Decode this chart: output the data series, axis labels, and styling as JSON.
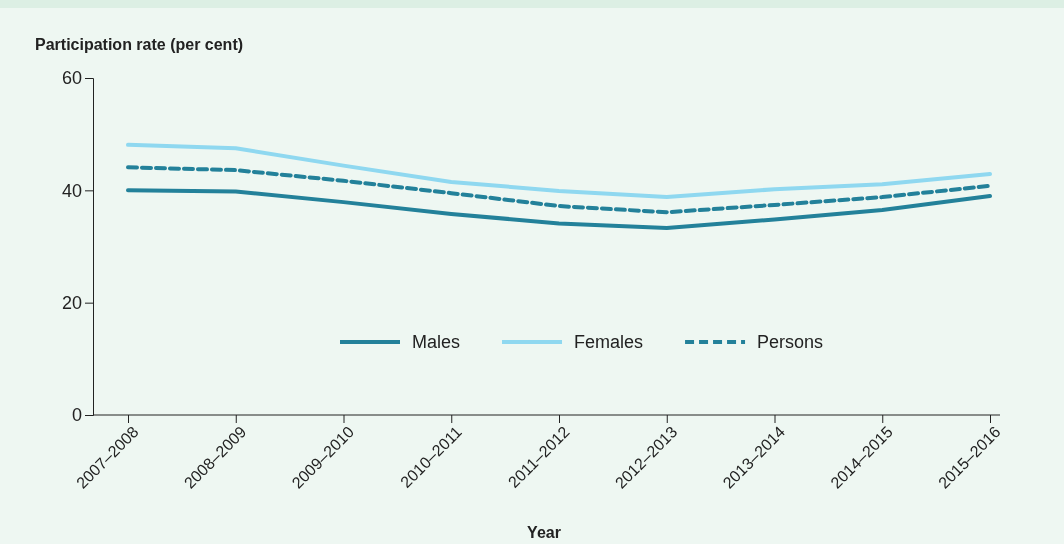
{
  "chart_data": {
    "type": "line",
    "ylabel": "Participation rate (per cent)",
    "xlabel": "Year",
    "categories": [
      "2007–2008",
      "2008–2009",
      "2009–2010",
      "2010–2011",
      "2011–2012",
      "2012–2013",
      "2013–2014",
      "2014–2015",
      "2015–2016"
    ],
    "series": [
      {
        "name": "Males",
        "color": "#23819a",
        "line_style": "solid",
        "values": [
          40.0,
          39.8,
          37.9,
          35.8,
          34.1,
          33.3,
          34.8,
          36.5,
          39.0
        ]
      },
      {
        "name": "Females",
        "color": "#8fd8f0",
        "line_style": "solid",
        "values": [
          48.1,
          47.5,
          44.4,
          41.5,
          39.9,
          38.8,
          40.2,
          41.1,
          42.9
        ]
      },
      {
        "name": "Persons",
        "color": "#23819a",
        "line_style": "dashed",
        "values": [
          44.1,
          43.6,
          41.7,
          39.5,
          37.2,
          36.1,
          37.4,
          38.8,
          40.8
        ]
      }
    ],
    "ylim": [
      0,
      60
    ],
    "yticks": [
      0,
      20,
      40,
      60
    ],
    "grid": false,
    "legend": "bottom",
    "marker": "none"
  }
}
